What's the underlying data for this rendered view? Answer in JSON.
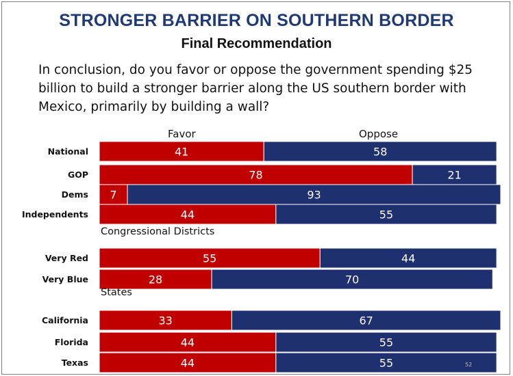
{
  "title": "STRONGER BARRIER ON SOUTHERN BORDER",
  "subtitle": "Final Recommendation",
  "question": "In conclusion, do you favor or oppose the government spending $25 billion to build a stronger barrier along the US southern border with Mexico, primarily by building a wall?",
  "slide_number": "52",
  "colors": {
    "favor": "#c00000",
    "oppose": "#1f3070",
    "title": "#1f3a73"
  },
  "chart_data": {
    "type": "bar",
    "stacked": true,
    "orientation": "horizontal",
    "column_headers": [
      "Favor",
      "Oppose"
    ],
    "xlim": [
      0,
      100
    ],
    "groups": [
      {
        "label": "",
        "rows": [
          {
            "category": "National",
            "favor": 41,
            "oppose": 58
          },
          {
            "category": "GOP",
            "favor": 78,
            "oppose": 21
          },
          {
            "category": "Dems",
            "favor": 7,
            "oppose": 93
          },
          {
            "category": "Independents",
            "favor": 44,
            "oppose": 55
          }
        ]
      },
      {
        "label": "Congressional Districts",
        "rows": [
          {
            "category": "Very Red",
            "favor": 55,
            "oppose": 44
          },
          {
            "category": "Very Blue",
            "favor": 28,
            "oppose": 70
          }
        ]
      },
      {
        "label": "States",
        "rows": [
          {
            "category": "California",
            "favor": 33,
            "oppose": 67
          },
          {
            "category": "Florida",
            "favor": 44,
            "oppose": 55
          },
          {
            "category": "Texas",
            "favor": 44,
            "oppose": 55
          }
        ]
      }
    ],
    "series": [
      {
        "name": "Favor",
        "values": [
          41,
          78,
          7,
          44,
          55,
          28,
          33,
          44,
          44
        ]
      },
      {
        "name": "Oppose",
        "values": [
          58,
          21,
          93,
          55,
          44,
          70,
          67,
          55,
          55
        ]
      }
    ]
  }
}
